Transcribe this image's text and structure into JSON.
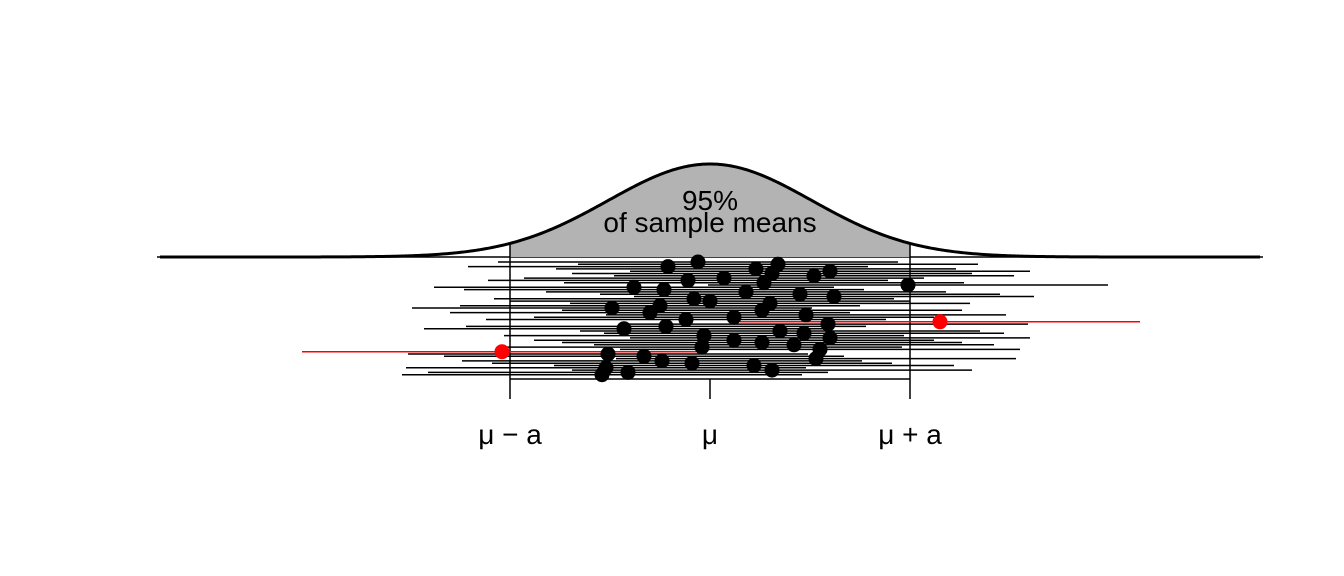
{
  "chart_data": {
    "type": "scatter",
    "title": "",
    "xlabel": "",
    "ylabel": "",
    "annotation": {
      "line1": "95%",
      "line2": "of sample means"
    },
    "x_ticks": [
      {
        "value": -1,
        "label": "μ − a"
      },
      {
        "value": 0,
        "label": "μ"
      },
      {
        "value": 1,
        "label": "μ + a"
      }
    ],
    "xlim": [
      -2.75,
      2.75
    ],
    "ci_half_width": 1.0,
    "colors": {
      "inside": "#000000",
      "outside": "#ff0000",
      "density_fill": "#b3b3b3"
    },
    "sample_means": [
      -0.06,
      0.34,
      -0.21,
      0.23,
      0.6,
      0.31,
      0.52,
      0.07,
      -0.11,
      0.27,
      0.99,
      -0.38,
      -0.23,
      0.18,
      0.45,
      0.62,
      -0.08,
      0.0,
      0.3,
      -0.25,
      -0.49,
      0.26,
      -0.3,
      0.48,
      0.12,
      -0.12,
      1.15,
      0.59,
      -0.22,
      -0.43,
      0.35,
      0.47,
      -0.03,
      0.6,
      0.12,
      0.26,
      0.42,
      -0.04,
      0.55,
      -1.04,
      -0.51,
      -0.33,
      0.53,
      -0.24,
      -0.09,
      0.22,
      -0.52,
      0.31,
      -0.41,
      -0.54
    ]
  }
}
